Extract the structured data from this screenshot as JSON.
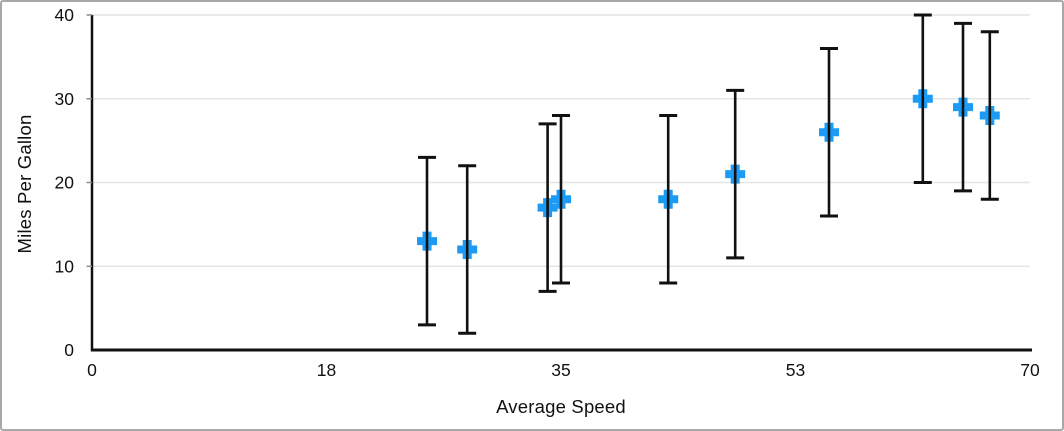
{
  "window": {
    "background_color": "#ffffff",
    "frame_border_color": "#a8a8a8"
  },
  "colors": {
    "axis": "#111111",
    "gridline": "#e4e4e4",
    "tick_mark": "#8a8a8a",
    "tick_label": "#111111",
    "marker_blue": "#1b9bf6",
    "error_bar": "#111111"
  },
  "chart_data": {
    "type": "scatter",
    "title": "",
    "xlabel": "Average Speed",
    "ylabel": "Miles Per Gallon",
    "xlim": [
      0,
      70
    ],
    "ylim": [
      0,
      40
    ],
    "grid": "horizontal-only",
    "legend_position": "none",
    "x_ticks": [
      {
        "pos": 0,
        "label": "0"
      },
      {
        "pos": 17.5,
        "label": "18"
      },
      {
        "pos": 35,
        "label": "35"
      },
      {
        "pos": 52.5,
        "label": "53"
      },
      {
        "pos": 70,
        "label": "70"
      }
    ],
    "y_ticks": [
      {
        "pos": 0,
        "label": "0"
      },
      {
        "pos": 10,
        "label": "10"
      },
      {
        "pos": 20,
        "label": "20"
      },
      {
        "pos": 30,
        "label": "30"
      },
      {
        "pos": 40,
        "label": "40"
      }
    ],
    "marker": {
      "shape": "plus",
      "color": "#1b9bf6",
      "width": 20,
      "height": 19,
      "arm_thickness": 8
    },
    "error_bars": {
      "mode": "fixed",
      "plus": 10,
      "minus": 10,
      "color": "#111111",
      "cap_width": 18
    },
    "series": [
      {
        "name": "Miles Per Gallon",
        "points": [
          {
            "x": 25,
            "y": 13
          },
          {
            "x": 28,
            "y": 12
          },
          {
            "x": 34,
            "y": 17
          },
          {
            "x": 35,
            "y": 18
          },
          {
            "x": 43,
            "y": 18
          },
          {
            "x": 48,
            "y": 21
          },
          {
            "x": 55,
            "y": 26
          },
          {
            "x": 62,
            "y": 30
          },
          {
            "x": 65,
            "y": 29
          },
          {
            "x": 67,
            "y": 28
          }
        ]
      }
    ]
  }
}
